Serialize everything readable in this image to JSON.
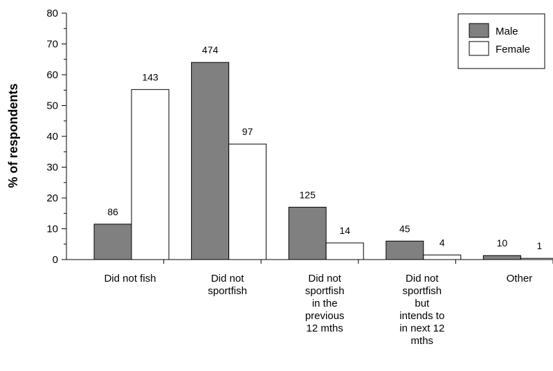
{
  "chart_data": {
    "type": "bar",
    "ylabel": "% of respondents",
    "xlabel": "",
    "ylim": [
      0,
      80
    ],
    "yticks": [
      0,
      10,
      20,
      30,
      40,
      50,
      60,
      70,
      80
    ],
    "grid": false,
    "legend_position": "top-right",
    "categories": [
      [
        "Did not fish"
      ],
      [
        "Did not",
        "sportfish"
      ],
      [
        "Did not",
        "sportfish",
        "in the",
        "previous",
        "12 mths"
      ],
      [
        "Did not",
        "sportfish",
        "but",
        "intends to",
        "in next 12",
        "mths"
      ],
      [
        "Other"
      ]
    ],
    "series": [
      {
        "name": "Male",
        "color": "#808080",
        "values": [
          11.5,
          64,
          17,
          6,
          1.3
        ],
        "labels": [
          "86",
          "474",
          "125",
          "45",
          "10"
        ]
      },
      {
        "name": "Female",
        "color": "#ffffff",
        "values": [
          55.2,
          37.5,
          5.4,
          1.5,
          0.4
        ],
        "labels": [
          "143",
          "97",
          "14",
          "4",
          "1"
        ]
      }
    ]
  }
}
